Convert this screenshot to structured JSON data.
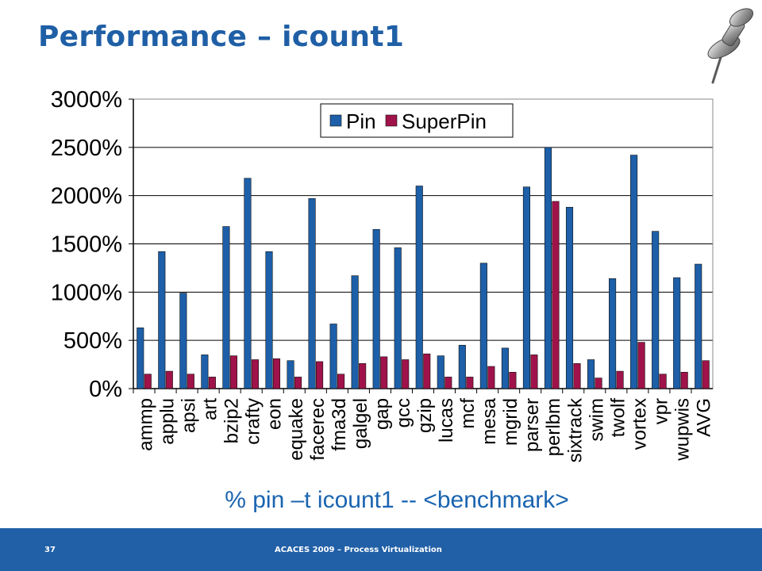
{
  "slide": {
    "title": "Performance – icount1",
    "subtitle": "% pin –t icount1 -- <benchmark>",
    "footer_page": "37",
    "footer_text": "ACACES 2009 – Process Virtualization",
    "pin_icon": "pushpin-icon"
  },
  "colors": {
    "title": "#1f5fa6",
    "pin_series": "#1d5fa8",
    "superpin_series": "#a0124a",
    "footer": "#2160a7",
    "subtitle": "#1a64b0"
  },
  "chart_data": {
    "type": "bar",
    "title": "",
    "xlabel": "",
    "ylabel": "",
    "ylim": [
      0,
      3000
    ],
    "y_tick_values": [
      0,
      500,
      1000,
      1500,
      2000,
      2500,
      3000
    ],
    "y_tick_labels": [
      "0%",
      "500%",
      "1000%",
      "1500%",
      "2000%",
      "2500%",
      "3000%"
    ],
    "grid": true,
    "legend_position": "top-center",
    "categories": [
      "ammp",
      "applu",
      "apsi",
      "art",
      "bzip2",
      "crafty",
      "eon",
      "equake",
      "facerec",
      "fma3d",
      "galgel",
      "gap",
      "gcc",
      "gzip",
      "lucas",
      "mcf",
      "mesa",
      "mgrid",
      "parser",
      "perlbm",
      "sixtrack",
      "swim",
      "twolf",
      "vortex",
      "vpr",
      "wupwis",
      "AVG"
    ],
    "series": [
      {
        "name": "Pin",
        "color": "#1d5fa8",
        "values": [
          630,
          1420,
          990,
          350,
          1680,
          2180,
          1420,
          290,
          1970,
          670,
          1170,
          1650,
          1460,
          2100,
          340,
          450,
          1300,
          420,
          2090,
          2500,
          1880,
          300,
          1140,
          2420,
          1630,
          1150,
          1290
        ]
      },
      {
        "name": "SuperPin",
        "color": "#a0124a",
        "values": [
          150,
          180,
          150,
          120,
          340,
          300,
          310,
          120,
          280,
          150,
          260,
          330,
          300,
          360,
          120,
          120,
          230,
          170,
          350,
          1940,
          260,
          110,
          180,
          480,
          150,
          170,
          290
        ]
      }
    ]
  }
}
